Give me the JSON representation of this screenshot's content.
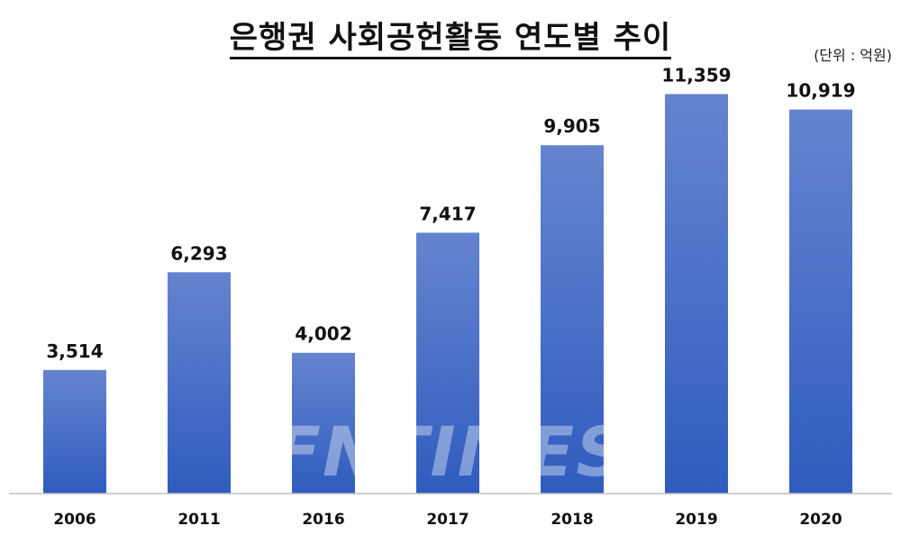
{
  "title": "은행권 사회공헌활동 연도별 추이",
  "unit_note": "(단위 : 억원)",
  "watermark": "FNTIMES",
  "chart_data": {
    "type": "bar",
    "title": "은행권 사회공헌활동 연도별 추이",
    "categories": [
      "2006",
      "2011",
      "2016",
      "2017",
      "2018",
      "2019",
      "2020"
    ],
    "values": [
      3514,
      6293,
      4002,
      7417,
      9905,
      11359,
      10919
    ],
    "value_labels": [
      "3,514",
      "6,293",
      "4,002",
      "7,417",
      "9,905",
      "11,359",
      "10,919"
    ],
    "ylim": [
      0,
      12000
    ],
    "grid": false,
    "legend": "none",
    "colors": {
      "bar_top": "#6584cf",
      "bar_bottom": "#2f5cbf",
      "axis": "#bfbfbf"
    }
  }
}
